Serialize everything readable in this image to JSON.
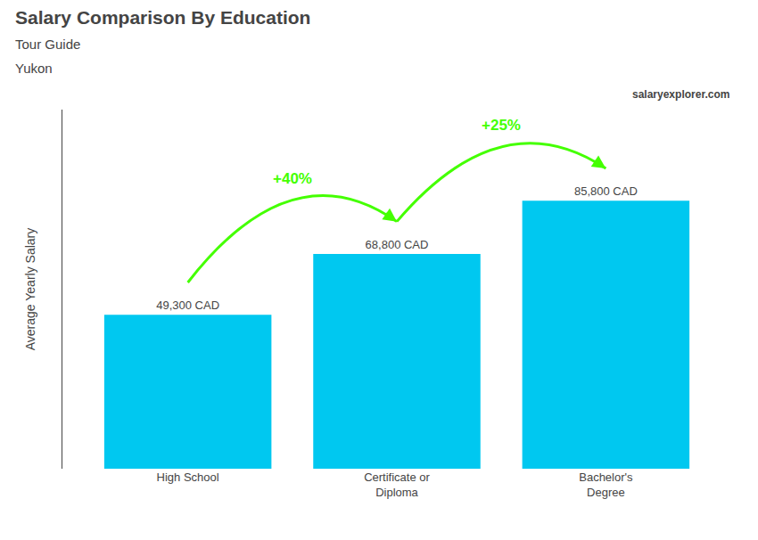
{
  "chart_data": {
    "type": "bar",
    "title": "Salary Comparison By Education",
    "subtitle": [
      "Tour Guide",
      "Yukon"
    ],
    "ylabel": "Average Yearly Salary",
    "source": "salaryexplorer.com",
    "categories": [
      "High School",
      "Certificate or\nDiploma",
      "Bachelor's\nDegree"
    ],
    "values": [
      49300,
      68800,
      85800
    ],
    "value_labels": [
      "49,300 CAD",
      "68,800 CAD",
      "85,800 CAD"
    ],
    "data_labels": true,
    "color": "#00c8f0",
    "annotations": [
      {
        "text": "+40%",
        "color": "#44ff00"
      },
      {
        "text": "+25%",
        "color": "#44ff00"
      }
    ],
    "ylim": [
      0,
      115000
    ],
    "grid": false,
    "tick_labels": "x"
  }
}
